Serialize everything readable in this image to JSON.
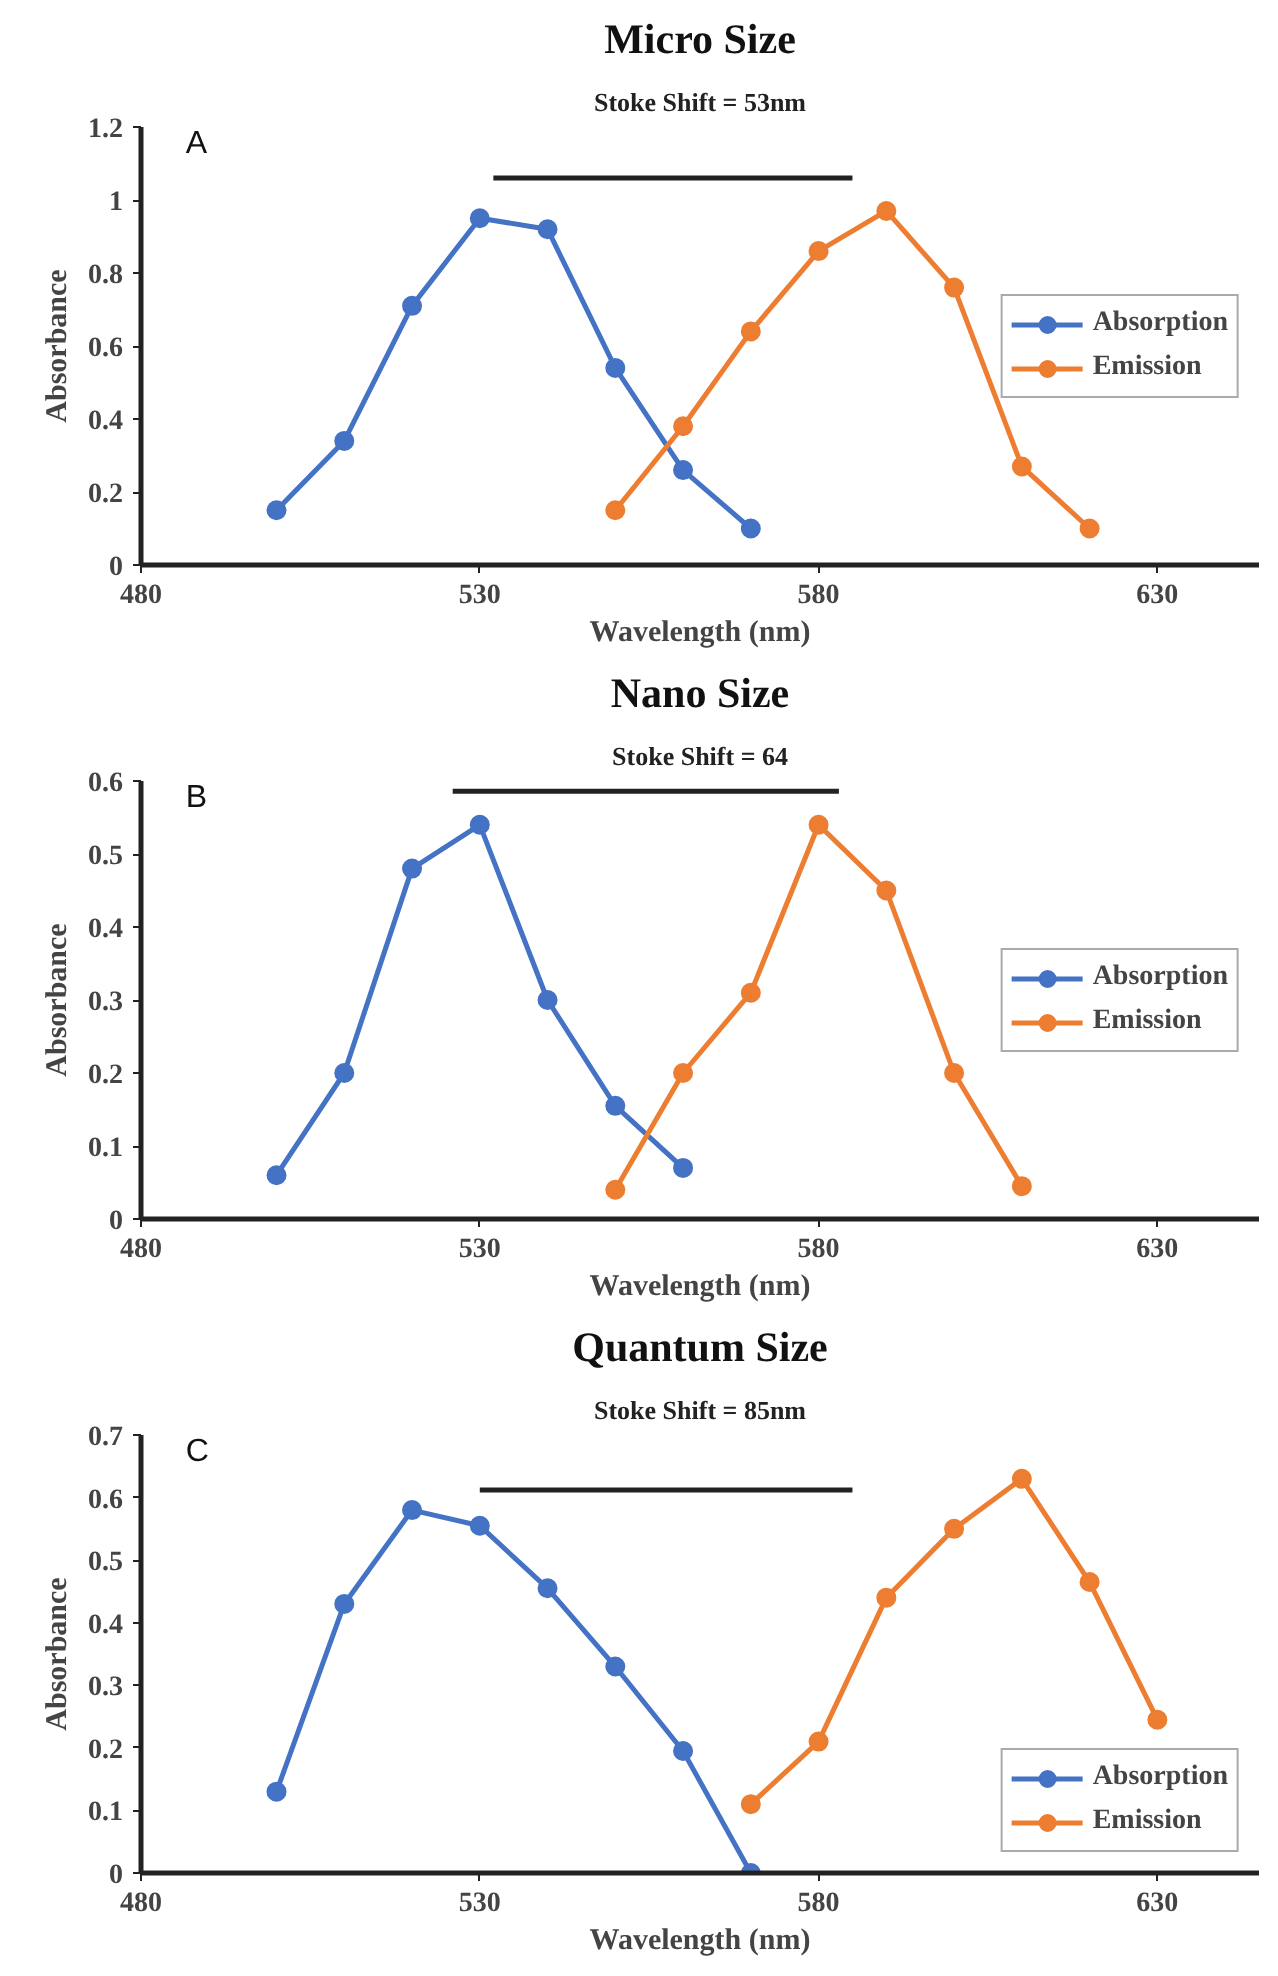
{
  "chart_data": [
    {
      "type": "line",
      "title": "Micro Size",
      "subtitle": "Stoke Shift = 53nm",
      "xlabel": "Wavelength (nm)",
      "ylabel": "Absorbance",
      "annotations": [
        "A"
      ],
      "xlim": [
        480,
        645
      ],
      "xticks": [
        480,
        530,
        580,
        630
      ],
      "ylim": [
        0,
        1.2
      ],
      "yticks": [
        0,
        0.2,
        0.4,
        0.6,
        0.8,
        1,
        1.2
      ],
      "grid": false,
      "legend": "right",
      "marker": "circle",
      "line_style": "solid",
      "series": [
        {
          "name": "Absorption",
          "color": "#4472c4",
          "x": [
            500,
            510,
            520,
            530,
            540,
            550,
            560,
            570
          ],
          "values": [
            0.15,
            0.34,
            0.71,
            0.95,
            0.92,
            0.54,
            0.26,
            0.1
          ]
        },
        {
          "name": "Emission",
          "color": "#ed7d31",
          "x": [
            550,
            560,
            570,
            580,
            590,
            600,
            610,
            620
          ],
          "values": [
            0.15,
            0.38,
            0.64,
            0.86,
            0.97,
            0.76,
            0.27,
            0.1
          ]
        },
        {
          "color": "#222222",
          "marker": "none",
          "x": [
            532,
            585
          ],
          "values": [
            1.06,
            1.06
          ]
        }
      ]
    },
    {
      "type": "line",
      "title": "Nano Size",
      "subtitle": "Stoke Shift = 64",
      "xlabel": "Wavelength (nm)",
      "ylabel": "Absorbance",
      "annotations": [
        "B"
      ],
      "xlim": [
        480,
        645
      ],
      "xticks": [
        480,
        530,
        580,
        630
      ],
      "ylim": [
        0,
        0.6
      ],
      "yticks": [
        0,
        0.1,
        0.2,
        0.3,
        0.4,
        0.5,
        0.6
      ],
      "grid": false,
      "legend": "right",
      "marker": "circle",
      "line_style": "solid",
      "series": [
        {
          "name": "Absorption",
          "color": "#4472c4",
          "x": [
            500,
            510,
            520,
            530,
            540,
            550,
            560
          ],
          "values": [
            0.06,
            0.2,
            0.48,
            0.54,
            0.3,
            0.155,
            0.07
          ]
        },
        {
          "name": "Emission",
          "color": "#ed7d31",
          "x": [
            550,
            560,
            570,
            580,
            590,
            600,
            610
          ],
          "values": [
            0.04,
            0.2,
            0.31,
            0.54,
            0.45,
            0.2,
            0.045
          ]
        },
        {
          "color": "#222222",
          "marker": "none",
          "x": [
            526,
            583
          ],
          "values": [
            0.586,
            0.586
          ]
        }
      ]
    },
    {
      "type": "line",
      "title": "Quantum Size",
      "subtitle": "Stoke Shift = 85nm",
      "xlabel": "Wavelength (nm)",
      "ylabel": "Absorbance",
      "annotations": [
        "C"
      ],
      "xlim": [
        480,
        645
      ],
      "xticks": [
        480,
        530,
        580,
        630
      ],
      "ylim": [
        0,
        0.7
      ],
      "yticks": [
        0,
        0.1,
        0.2,
        0.3,
        0.4,
        0.5,
        0.6,
        0.7
      ],
      "grid": false,
      "legend": "bottom right",
      "marker": "circle",
      "line_style": "solid",
      "series": [
        {
          "name": "Absorption",
          "color": "#4472c4",
          "x": [
            500,
            510,
            520,
            530,
            540,
            550,
            560,
            570
          ],
          "values": [
            0.13,
            0.43,
            0.58,
            0.555,
            0.455,
            0.33,
            0.195,
            0.0
          ]
        },
        {
          "name": "Emission",
          "color": "#ed7d31",
          "x": [
            570,
            580,
            590,
            600,
            610,
            620,
            630
          ],
          "values": [
            0.11,
            0.21,
            0.44,
            0.55,
            0.63,
            0.465,
            0.245
          ]
        },
        {
          "color": "#222222",
          "marker": "none",
          "x": [
            530,
            585
          ],
          "values": [
            0.612,
            0.612
          ]
        }
      ]
    }
  ]
}
